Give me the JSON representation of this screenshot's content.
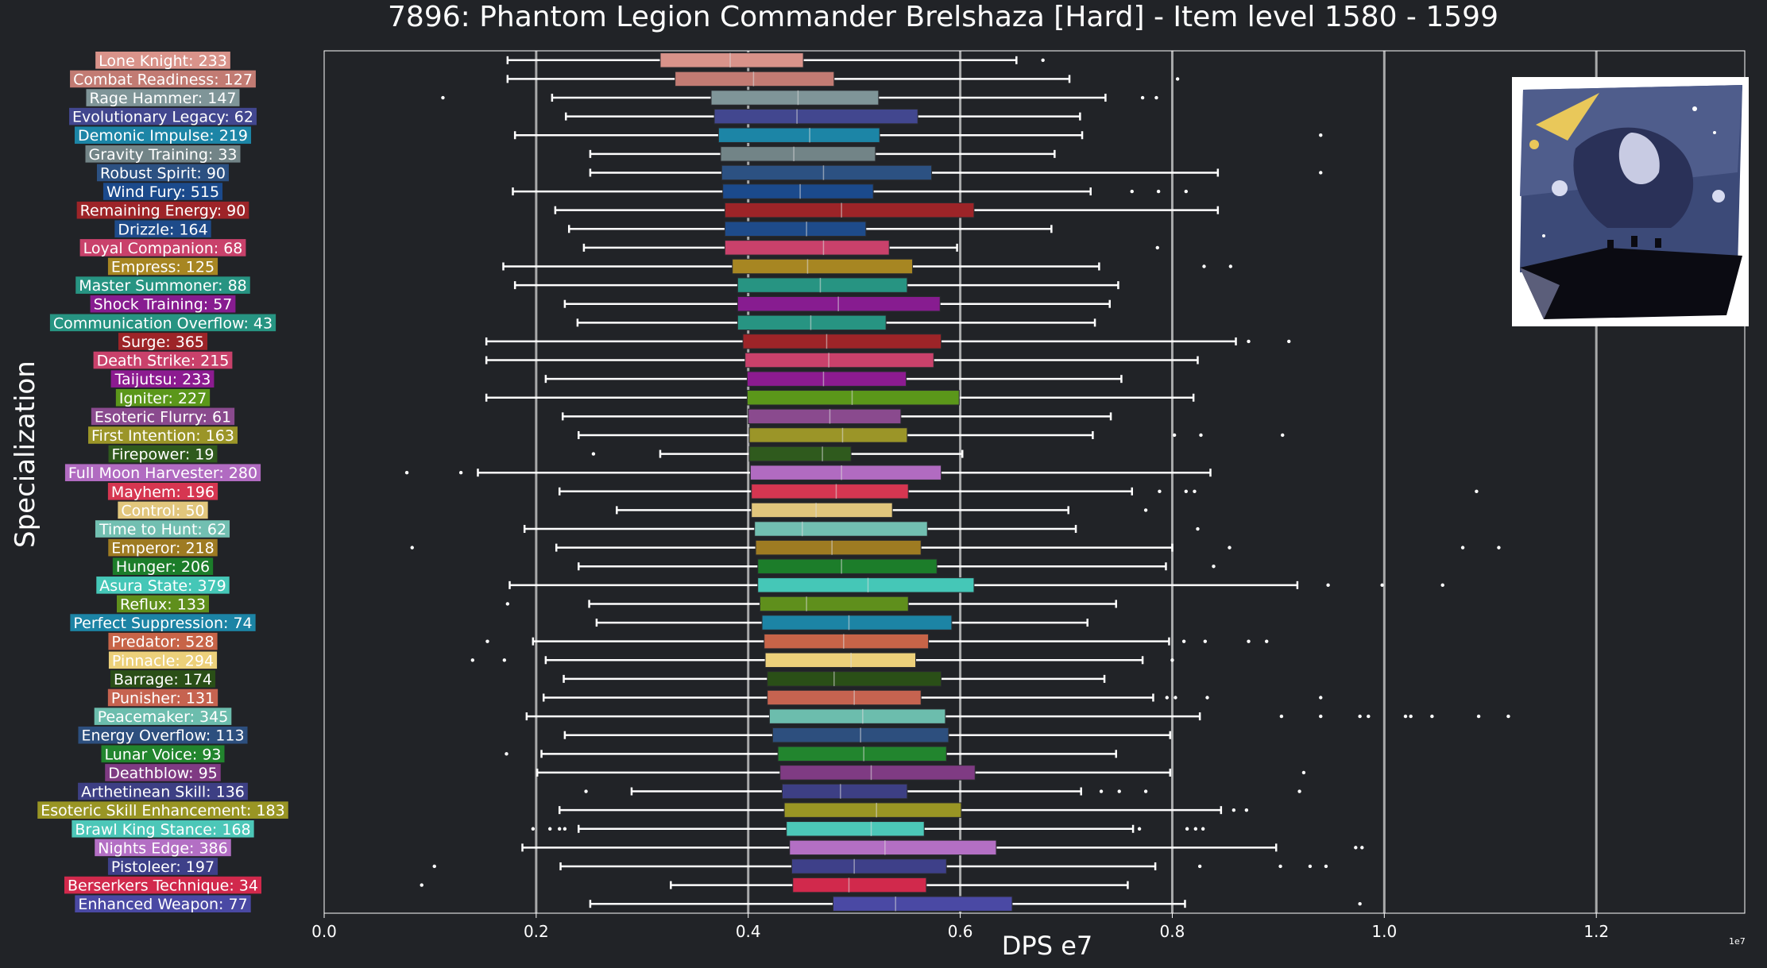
{
  "chart_data": {
    "type": "boxplot",
    "orientation": "horizontal",
    "title": "7896: Phantom Legion Commander Brelshaza [Hard] - Item level 1580 - 1599",
    "xlabel": "DPS e7",
    "ylabel": "Specialization",
    "x_scale_note": "1e7",
    "xlim": [
      0,
      1.34
    ],
    "xticks": [
      "0.0",
      "0.2",
      "0.4",
      "0.6",
      "0.8",
      "1.0",
      "1.2"
    ],
    "grid": "vertical",
    "categories": [
      {
        "label": "Lone Knight: 233",
        "color": "#d9938a",
        "whislo": 0.173,
        "q1": 0.317,
        "med": 0.383,
        "q3": 0.452,
        "whishi": 0.653,
        "fliers": [
          0.678
        ]
      },
      {
        "label": "Combat Readiness: 127",
        "color": "#c27b73",
        "whislo": 0.173,
        "q1": 0.331,
        "med": 0.405,
        "q3": 0.481,
        "whishi": 0.703,
        "fliers": [
          0.805
        ]
      },
      {
        "label": "Rage Hammer: 147",
        "color": "#7f9598",
        "whislo": 0.215,
        "q1": 0.365,
        "med": 0.447,
        "q3": 0.523,
        "whishi": 0.737,
        "fliers": [
          0.112,
          0.772,
          0.785
        ]
      },
      {
        "label": "Evolutionary Legacy: 62",
        "color": "#42478f",
        "whislo": 0.228,
        "q1": 0.368,
        "med": 0.446,
        "q3": 0.56,
        "whishi": 0.713,
        "fliers": []
      },
      {
        "label": "Demonic Impulse: 219",
        "color": "#1c85a6",
        "whislo": 0.18,
        "q1": 0.372,
        "med": 0.458,
        "q3": 0.524,
        "whishi": 0.715,
        "fliers": [
          0.94
        ]
      },
      {
        "label": "Gravity Training: 33",
        "color": "#728487",
        "whislo": 0.251,
        "q1": 0.374,
        "med": 0.443,
        "q3": 0.52,
        "whishi": 0.689,
        "fliers": []
      },
      {
        "label": "Robust Spirit: 90",
        "color": "#2c5182",
        "whislo": 0.251,
        "q1": 0.375,
        "med": 0.471,
        "q3": 0.573,
        "whishi": 0.843,
        "fliers": [
          0.94
        ]
      },
      {
        "label": "Wind Fury: 515",
        "color": "#1b4a8c",
        "whislo": 0.178,
        "q1": 0.376,
        "med": 0.449,
        "q3": 0.518,
        "whishi": 0.723,
        "fliers": [
          0.762,
          0.787,
          0.813
        ]
      },
      {
        "label": "Remaining Energy: 90",
        "color": "#9d2428",
        "whislo": 0.218,
        "q1": 0.378,
        "med": 0.488,
        "q3": 0.613,
        "whishi": 0.843,
        "fliers": []
      },
      {
        "label": "Drizzle: 164",
        "color": "#1e4b8a",
        "whislo": 0.231,
        "q1": 0.378,
        "med": 0.455,
        "q3": 0.511,
        "whishi": 0.686,
        "fliers": []
      },
      {
        "label": "Loyal Companion: 68",
        "color": "#c9416b",
        "whislo": 0.245,
        "q1": 0.378,
        "med": 0.471,
        "q3": 0.533,
        "whishi": 0.597,
        "fliers": [
          0.786
        ]
      },
      {
        "label": "Empress: 125",
        "color": "#a78622",
        "whislo": 0.169,
        "q1": 0.385,
        "med": 0.456,
        "q3": 0.555,
        "whishi": 0.731,
        "fliers": [
          0.83,
          0.855
        ]
      },
      {
        "label": "Master Summoner: 88",
        "color": "#279482",
        "whislo": 0.18,
        "q1": 0.39,
        "med": 0.468,
        "q3": 0.55,
        "whishi": 0.749,
        "fliers": []
      },
      {
        "label": "Shock Training: 57",
        "color": "#871c90",
        "whislo": 0.227,
        "q1": 0.39,
        "med": 0.485,
        "q3": 0.581,
        "whishi": 0.741,
        "fliers": []
      },
      {
        "label": "Communication Overflow: 43",
        "color": "#279482",
        "whislo": 0.239,
        "q1": 0.39,
        "med": 0.459,
        "q3": 0.53,
        "whishi": 0.727,
        "fliers": []
      },
      {
        "label": "Surge: 365",
        "color": "#9d2428",
        "whislo": 0.153,
        "q1": 0.395,
        "med": 0.474,
        "q3": 0.582,
        "whishi": 0.86,
        "fliers": [
          0.872,
          0.91
        ]
      },
      {
        "label": "Death Strike: 215",
        "color": "#c9416b",
        "whislo": 0.153,
        "q1": 0.397,
        "med": 0.476,
        "q3": 0.575,
        "whishi": 0.824,
        "fliers": []
      },
      {
        "label": "Taijutsu: 233",
        "color": "#8c1b90",
        "whislo": 0.209,
        "q1": 0.399,
        "med": 0.471,
        "q3": 0.549,
        "whishi": 0.752,
        "fliers": []
      },
      {
        "label": "Igniter: 227",
        "color": "#5b971a",
        "whislo": 0.153,
        "q1": 0.399,
        "med": 0.498,
        "q3": 0.599,
        "whishi": 0.82,
        "fliers": []
      },
      {
        "label": "Esoteric Flurry: 61",
        "color": "#8a4a8e",
        "whislo": 0.225,
        "q1": 0.4,
        "med": 0.477,
        "q3": 0.544,
        "whishi": 0.742,
        "fliers": []
      },
      {
        "label": "First Intention: 163",
        "color": "#9b9528",
        "whislo": 0.24,
        "q1": 0.401,
        "med": 0.489,
        "q3": 0.55,
        "whishi": 0.725,
        "fliers": [
          0.802,
          0.827,
          0.904
        ]
      },
      {
        "label": "Firepower: 19",
        "color": "#2f5a1d",
        "whislo": 0.317,
        "q1": 0.401,
        "med": 0.47,
        "q3": 0.497,
        "whishi": 0.602,
        "fliers": [
          0.254
        ]
      },
      {
        "label": "Full Moon Harvester: 280",
        "color": "#b16bc1",
        "whislo": 0.145,
        "q1": 0.402,
        "med": 0.488,
        "q3": 0.582,
        "whishi": 0.836,
        "fliers": [
          0.078,
          0.129
        ]
      },
      {
        "label": "Mayhem: 196",
        "color": "#d63651",
        "whislo": 0.222,
        "q1": 0.403,
        "med": 0.483,
        "q3": 0.551,
        "whishi": 0.762,
        "fliers": [
          0.788,
          0.813,
          0.821,
          1.087
        ]
      },
      {
        "label": "Control: 50",
        "color": "#e1c67c",
        "whislo": 0.276,
        "q1": 0.403,
        "med": 0.464,
        "q3": 0.536,
        "whishi": 0.702,
        "fliers": [
          0.775
        ]
      },
      {
        "label": "Time to Hunt: 62",
        "color": "#72bfb1",
        "whislo": 0.189,
        "q1": 0.406,
        "med": 0.451,
        "q3": 0.569,
        "whishi": 0.709,
        "fliers": [
          0.824
        ]
      },
      {
        "label": "Emperor: 218",
        "color": "#9e7b22",
        "whislo": 0.219,
        "q1": 0.407,
        "med": 0.479,
        "q3": 0.563,
        "whishi": 0.8,
        "fliers": [
          0.083,
          0.854,
          1.074,
          1.108
        ]
      },
      {
        "label": "Hunger: 206",
        "color": "#1c7d2a",
        "whislo": 0.24,
        "q1": 0.409,
        "med": 0.488,
        "q3": 0.578,
        "whishi": 0.794,
        "fliers": [
          0.839
        ]
      },
      {
        "label": "Asura State: 379",
        "color": "#45c7b7",
        "whislo": 0.175,
        "q1": 0.409,
        "med": 0.513,
        "q3": 0.613,
        "whishi": 0.918,
        "fliers": [
          0.947,
          0.998,
          1.055
        ]
      },
      {
        "label": "Reflux: 133",
        "color": "#5f8f1c",
        "whislo": 0.25,
        "q1": 0.411,
        "med": 0.455,
        "q3": 0.551,
        "whishi": 0.747,
        "fliers": [
          0.173
        ]
      },
      {
        "label": "Perfect Suppression: 74",
        "color": "#1c84a5",
        "whislo": 0.257,
        "q1": 0.413,
        "med": 0.495,
        "q3": 0.592,
        "whishi": 0.72,
        "fliers": []
      },
      {
        "label": "Predator: 528",
        "color": "#c76448",
        "whislo": 0.197,
        "q1": 0.415,
        "med": 0.49,
        "q3": 0.57,
        "whishi": 0.797,
        "fliers": [
          0.154,
          0.811,
          0.831,
          0.872,
          0.889
        ]
      },
      {
        "label": "Pinnacle: 294",
        "color": "#ecd07a",
        "whislo": 0.209,
        "q1": 0.416,
        "med": 0.497,
        "q3": 0.558,
        "whishi": 0.772,
        "fliers": [
          0.14,
          0.17,
          0.8
        ]
      },
      {
        "label": "Barrage: 174",
        "color": "#2a4f17",
        "whislo": 0.226,
        "q1": 0.418,
        "med": 0.481,
        "q3": 0.582,
        "whishi": 0.736,
        "fliers": []
      },
      {
        "label": "Punisher: 131",
        "color": "#c66350",
        "whislo": 0.207,
        "q1": 0.418,
        "med": 0.5,
        "q3": 0.563,
        "whishi": 0.782,
        "fliers": [
          0.795,
          0.803,
          0.833,
          0.94
        ]
      },
      {
        "label": "Peacemaker: 345",
        "color": "#6cbdad",
        "whislo": 0.191,
        "q1": 0.42,
        "med": 0.508,
        "q3": 0.586,
        "whishi": 0.826,
        "fliers": [
          0.903,
          0.94,
          0.977,
          0.985,
          1.02,
          1.025,
          1.045,
          1.089,
          1.117
        ]
      },
      {
        "label": "Energy Overflow: 113",
        "color": "#2d4f7e",
        "whislo": 0.227,
        "q1": 0.423,
        "med": 0.506,
        "q3": 0.589,
        "whishi": 0.798,
        "fliers": []
      },
      {
        "label": "Lunar Voice: 93",
        "color": "#22852e",
        "whislo": 0.205,
        "q1": 0.428,
        "med": 0.509,
        "q3": 0.587,
        "whishi": 0.747,
        "fliers": [
          0.172
        ]
      },
      {
        "label": "Deathblow: 95",
        "color": "#7f3b83",
        "whislo": 0.201,
        "q1": 0.43,
        "med": 0.516,
        "q3": 0.614,
        "whishi": 0.798,
        "fliers": [
          0.924
        ]
      },
      {
        "label": "Arthetinean Skill: 136",
        "color": "#3d3f84",
        "whislo": 0.29,
        "q1": 0.432,
        "med": 0.487,
        "q3": 0.55,
        "whishi": 0.714,
        "fliers": [
          0.247,
          0.733,
          0.75,
          0.775,
          0.92
        ]
      },
      {
        "label": "Esoteric Skill Enhancement: 183",
        "color": "#999524",
        "whislo": 0.222,
        "q1": 0.434,
        "med": 0.521,
        "q3": 0.601,
        "whishi": 0.846,
        "fliers": [
          0.858,
          0.87
        ]
      },
      {
        "label": "Brawl King Stance: 168",
        "color": "#4cc7b8",
        "whislo": 0.24,
        "q1": 0.436,
        "med": 0.516,
        "q3": 0.566,
        "whishi": 0.763,
        "fliers": [
          0.197,
          0.213,
          0.222,
          0.227,
          0.769,
          0.814,
          0.822,
          0.829
        ]
      },
      {
        "label": "Nights Edge: 386",
        "color": "#b36fc4",
        "whislo": 0.187,
        "q1": 0.439,
        "med": 0.529,
        "q3": 0.634,
        "whishi": 0.898,
        "fliers": [
          0.973,
          0.979
        ]
      },
      {
        "label": "Pistoleer: 197",
        "color": "#3e4089",
        "whislo": 0.223,
        "q1": 0.441,
        "med": 0.5,
        "q3": 0.587,
        "whishi": 0.784,
        "fliers": [
          0.104,
          0.826,
          0.902,
          0.93,
          0.945
        ]
      },
      {
        "label": "Berserkers Technique: 34",
        "color": "#d1294c",
        "whislo": 0.327,
        "q1": 0.442,
        "med": 0.495,
        "q3": 0.568,
        "whishi": 0.758,
        "fliers": [
          0.092
        ]
      },
      {
        "label": "Enhanced Weapon: 77",
        "color": "#4a49a4",
        "whislo": 0.251,
        "q1": 0.48,
        "med": 0.539,
        "q3": 0.649,
        "whishi": 0.812,
        "fliers": [
          0.977
        ]
      }
    ]
  },
  "thumbnail": {
    "alt_icon": "boss-portrait-image"
  }
}
